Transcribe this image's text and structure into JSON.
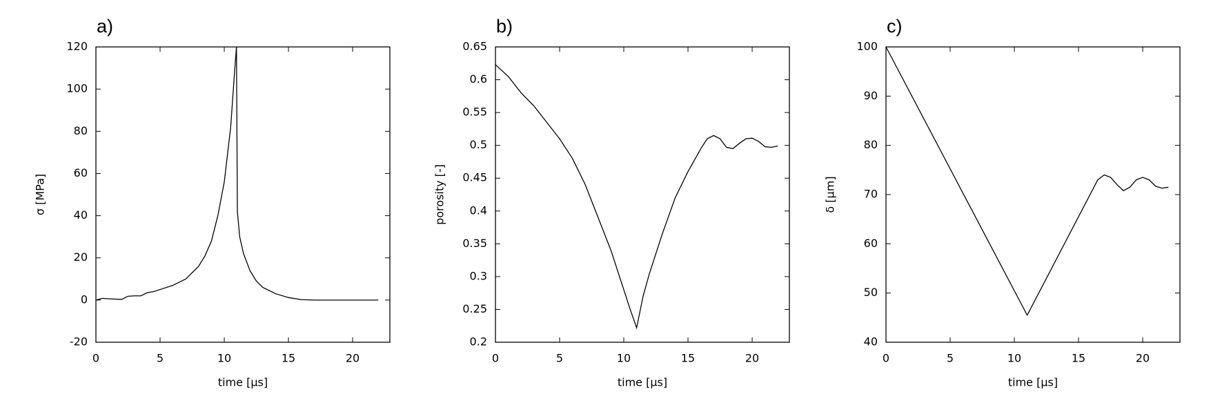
{
  "chart_data": [
    {
      "type": "line",
      "panel_label": "a)",
      "xlabel": "time [µs]",
      "ylabel": "σ [MPa]",
      "color": "#000000",
      "x": [
        0,
        0.5,
        1,
        2,
        2.5,
        3,
        3.5,
        4,
        4.5,
        5,
        6,
        7,
        8,
        8.5,
        9,
        9.5,
        10,
        10.5,
        10.8,
        10.95,
        11.02,
        11.2,
        11.5,
        12,
        12.5,
        13,
        14,
        15,
        16,
        17,
        18,
        20,
        22
      ],
      "values": [
        0,
        0.8,
        0.6,
        0.3,
        1.8,
        2,
        2,
        3.5,
        4,
        5,
        7,
        10,
        16,
        21,
        28,
        40,
        56,
        82,
        108,
        120,
        42,
        30,
        22,
        14,
        9,
        6,
        3,
        1.2,
        0.2,
        0,
        0,
        0,
        0
      ],
      "xlim": [
        0,
        22.9
      ],
      "xticks": [
        0,
        5,
        10,
        15,
        20
      ],
      "ylim": [
        -20,
        120
      ],
      "yticks": [
        -20,
        0,
        20,
        40,
        60,
        80,
        100,
        120
      ]
    },
    {
      "type": "line",
      "panel_label": "b)",
      "xlabel": "time [µs]",
      "ylabel": "porosity [-]",
      "color": "#000000",
      "x": [
        0,
        1,
        2,
        3,
        4,
        5,
        6,
        7,
        8,
        9,
        10,
        10.5,
        11,
        11.5,
        12,
        13,
        14,
        15,
        16,
        16.5,
        17,
        17.5,
        18,
        18.5,
        19,
        19.5,
        20,
        20.5,
        21,
        21.5,
        22
      ],
      "values": [
        0.623,
        0.605,
        0.58,
        0.56,
        0.535,
        0.51,
        0.48,
        0.44,
        0.39,
        0.34,
        0.28,
        0.25,
        0.222,
        0.27,
        0.305,
        0.365,
        0.42,
        0.46,
        0.495,
        0.51,
        0.515,
        0.51,
        0.497,
        0.495,
        0.503,
        0.51,
        0.511,
        0.506,
        0.498,
        0.497,
        0.499
      ],
      "xlim": [
        0,
        22.9
      ],
      "xticks": [
        0,
        5,
        10,
        15,
        20
      ],
      "ylim": [
        0.2,
        0.65
      ],
      "yticks": [
        0.2,
        0.25,
        0.3,
        0.35,
        0.4,
        0.45,
        0.5,
        0.55,
        0.6,
        0.65
      ]
    },
    {
      "type": "line",
      "panel_label": "c)",
      "xlabel": "time [µs]",
      "ylabel": "δ [µm]",
      "color": "#000000",
      "x": [
        0,
        11,
        16.5,
        17,
        17.5,
        18,
        18.5,
        19,
        19.5,
        20,
        20.5,
        21,
        21.5,
        22
      ],
      "values": [
        100,
        45.5,
        73,
        74,
        73.5,
        72,
        70.8,
        71.5,
        73,
        73.5,
        73,
        71.7,
        71.3,
        71.5
      ],
      "xlim": [
        0,
        22.9
      ],
      "xticks": [
        0,
        5,
        10,
        15,
        20
      ],
      "ylim": [
        40,
        100
      ],
      "yticks": [
        40,
        50,
        60,
        70,
        80,
        90,
        100
      ]
    }
  ]
}
